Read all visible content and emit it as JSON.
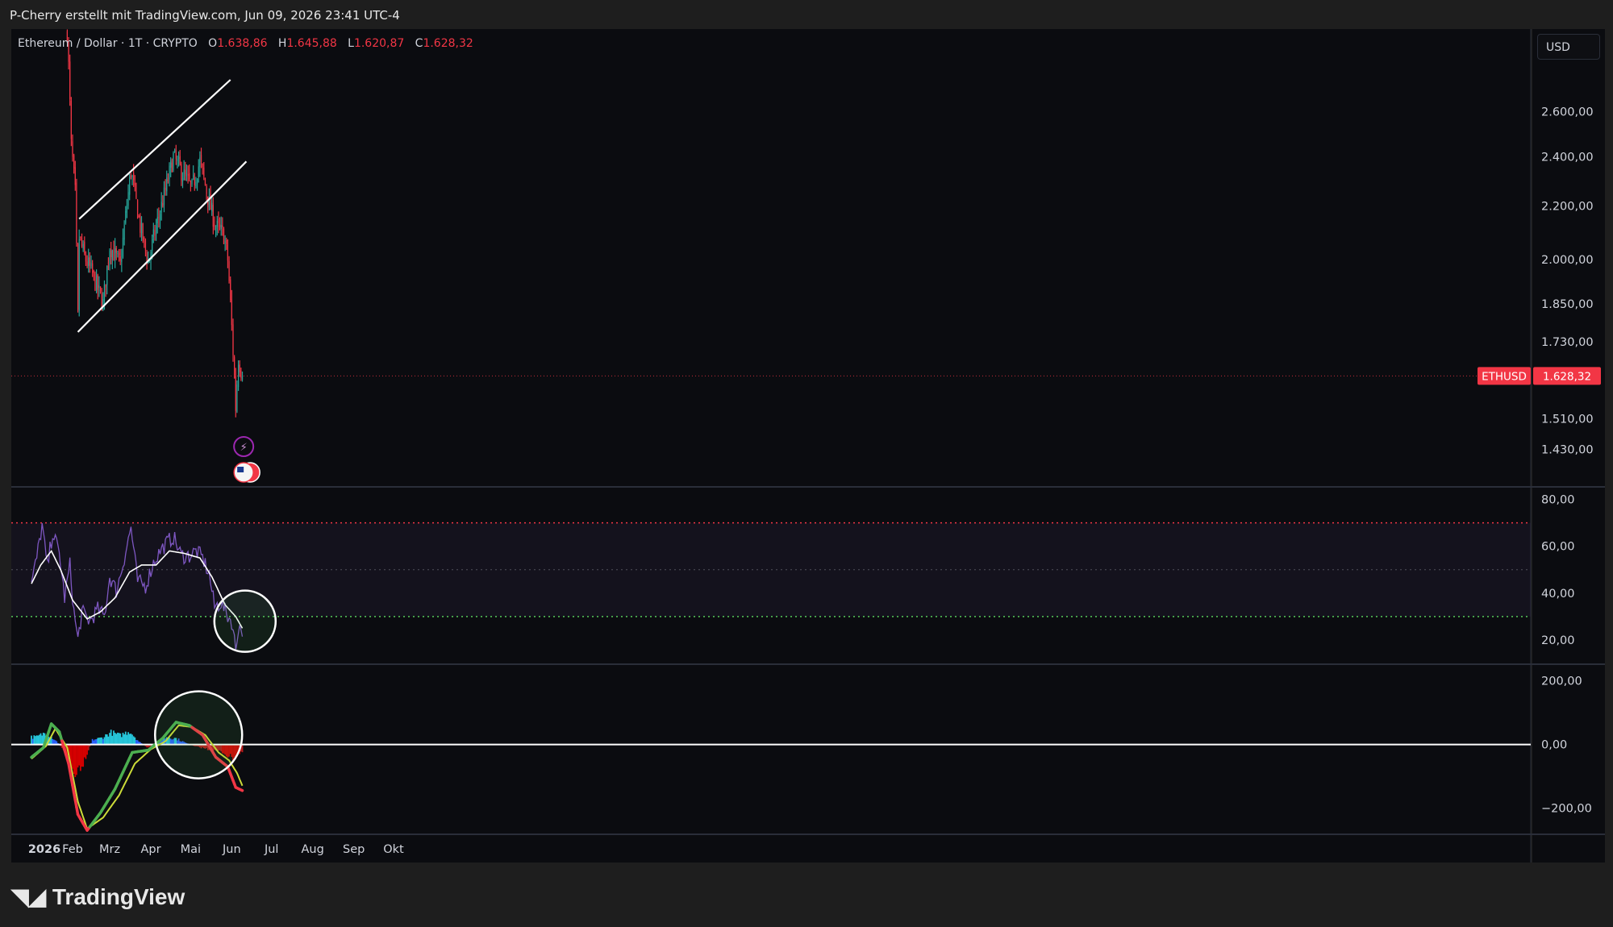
{
  "header": {
    "attribution": "P-Cherry erstellt mit TradingView.com, Jun 09, 2026 23:41 UTC-4"
  },
  "legend": {
    "symbol": "Ethereum / Dollar · 1T · CRYPTO",
    "open_label": "O",
    "open": "1.638,86",
    "high_label": "H",
    "high": "1.645,88",
    "low_label": "L",
    "low": "1.620,87",
    "close_label": "C",
    "close": "1.628,32"
  },
  "currency": "USD",
  "price_badge": {
    "symbol": "ETHUSD",
    "value": "1.628,32"
  },
  "footer": {
    "brand": "TradingView"
  },
  "colors": {
    "background": "#0b0c10",
    "up": "#26a69a",
    "down": "#f23645",
    "rsi": "#7e57c2",
    "rsi_ma": "#ffffff",
    "rsi_overbought": "#f23645",
    "rsi_oversold": "#4caf50",
    "macd": "#f23645",
    "signal": "#cddc39"
  },
  "chart_data": [
    {
      "type": "candlestick",
      "title": "Ethereum / Dollar · 1T · CRYPTO",
      "x_ticks": [
        "2026",
        "Feb",
        "Mrz",
        "Apr",
        "Mai",
        "Jun",
        "Jul",
        "Aug",
        "Sep",
        "Okt"
      ],
      "y_ticks": [
        "2.600,00",
        "2.400,00",
        "2.200,00",
        "2.000,00",
        "1.850,00",
        "1.730,00",
        "1.510,00",
        "1.430,00"
      ],
      "y_scale": "log",
      "y_range": [
        1340,
        3000
      ],
      "last_price": 1628.32,
      "candle_anchors": [
        {
          "date": "2026-01-28",
          "close": 3000
        },
        {
          "date": "2026-01-31",
          "close": 2450
        },
        {
          "date": "2026-02-03",
          "close": 2250
        },
        {
          "date": "2026-02-05",
          "close": 1810
        },
        {
          "date": "2026-02-06",
          "close": 2080
        },
        {
          "date": "2026-02-10",
          "close": 2010
        },
        {
          "date": "2026-02-15",
          "close": 1960
        },
        {
          "date": "2026-02-24",
          "close": 1850
        },
        {
          "date": "2026-03-01",
          "close": 2050
        },
        {
          "date": "2026-03-09",
          "close": 1980
        },
        {
          "date": "2026-03-17",
          "close": 2340
        },
        {
          "date": "2026-03-24",
          "close": 2120
        },
        {
          "date": "2026-03-30",
          "close": 1990
        },
        {
          "date": "2026-04-05",
          "close": 2120
        },
        {
          "date": "2026-04-12",
          "close": 2260
        },
        {
          "date": "2026-04-18",
          "close": 2400
        },
        {
          "date": "2026-04-25",
          "close": 2330
        },
        {
          "date": "2026-05-02",
          "close": 2270
        },
        {
          "date": "2026-05-08",
          "close": 2380
        },
        {
          "date": "2026-05-15",
          "close": 2210
        },
        {
          "date": "2026-05-20",
          "close": 2120
        },
        {
          "date": "2026-05-26",
          "close": 2090
        },
        {
          "date": "2026-05-29",
          "close": 2000
        },
        {
          "date": "2026-06-02",
          "close": 1700
        },
        {
          "date": "2026-06-04",
          "close": 1540
        },
        {
          "date": "2026-06-06",
          "close": 1680
        },
        {
          "date": "2026-06-09",
          "close": 1628.32
        }
      ],
      "trendlines": [
        {
          "name": "channel-upper",
          "from": {
            "date": "2026-02-06",
            "price": 2150
          },
          "to": {
            "date": "2026-05-31",
            "price": 2750
          }
        },
        {
          "name": "channel-lower",
          "from": {
            "date": "2026-02-05",
            "price": 1760
          },
          "to": {
            "date": "2026-06-12",
            "price": 2380
          }
        }
      ]
    },
    {
      "type": "line",
      "name": "RSI",
      "y_ticks": [
        "80,00",
        "60,00",
        "40,00",
        "20,00"
      ],
      "y_range": [
        10,
        85
      ],
      "levels": {
        "overbought": 70,
        "middle": 50,
        "oversold": 30
      },
      "series": [
        {
          "key": "rsi",
          "points": [
            {
              "date": "2026-01-01",
              "value": 44
            },
            {
              "date": "2026-01-05",
              "value": 55
            },
            {
              "date": "2026-01-09",
              "value": 69
            },
            {
              "date": "2026-01-13",
              "value": 51
            },
            {
              "date": "2026-01-17",
              "value": 66
            },
            {
              "date": "2026-01-22",
              "value": 57
            },
            {
              "date": "2026-01-26",
              "value": 38
            },
            {
              "date": "2026-01-30",
              "value": 52
            },
            {
              "date": "2026-02-02",
              "value": 32
            },
            {
              "date": "2026-02-05",
              "value": 20
            },
            {
              "date": "2026-02-08",
              "value": 32
            },
            {
              "date": "2026-02-14",
              "value": 28
            },
            {
              "date": "2026-02-20",
              "value": 33
            },
            {
              "date": "2026-02-25",
              "value": 30
            },
            {
              "date": "2026-03-01",
              "value": 47
            },
            {
              "date": "2026-03-06",
              "value": 41
            },
            {
              "date": "2026-03-10",
              "value": 50
            },
            {
              "date": "2026-03-17",
              "value": 68
            },
            {
              "date": "2026-03-22",
              "value": 45
            },
            {
              "date": "2026-03-28",
              "value": 43
            },
            {
              "date": "2026-04-03",
              "value": 53
            },
            {
              "date": "2026-04-08",
              "value": 58
            },
            {
              "date": "2026-04-14",
              "value": 62
            },
            {
              "date": "2026-04-18",
              "value": 64
            },
            {
              "date": "2026-04-24",
              "value": 56
            },
            {
              "date": "2026-04-30",
              "value": 56
            },
            {
              "date": "2026-05-05",
              "value": 58
            },
            {
              "date": "2026-05-10",
              "value": 55
            },
            {
              "date": "2026-05-15",
              "value": 48
            },
            {
              "date": "2026-05-19",
              "value": 34
            },
            {
              "date": "2026-05-24",
              "value": 36
            },
            {
              "date": "2026-05-28",
              "value": 31
            },
            {
              "date": "2026-06-01",
              "value": 28
            },
            {
              "date": "2026-06-04",
              "value": 16
            },
            {
              "date": "2026-06-06",
              "value": 26
            },
            {
              "date": "2026-06-09",
              "value": 24
            }
          ]
        },
        {
          "key": "rsi_ma",
          "points": [
            {
              "date": "2026-01-01",
              "value": 44
            },
            {
              "date": "2026-01-08",
              "value": 52
            },
            {
              "date": "2026-01-16",
              "value": 58
            },
            {
              "date": "2026-01-23",
              "value": 50
            },
            {
              "date": "2026-02-01",
              "value": 37
            },
            {
              "date": "2026-02-12",
              "value": 29
            },
            {
              "date": "2026-02-22",
              "value": 32
            },
            {
              "date": "2026-03-05",
              "value": 38
            },
            {
              "date": "2026-03-16",
              "value": 49
            },
            {
              "date": "2026-03-25",
              "value": 52
            },
            {
              "date": "2026-04-05",
              "value": 52
            },
            {
              "date": "2026-04-15",
              "value": 58
            },
            {
              "date": "2026-04-26",
              "value": 57
            },
            {
              "date": "2026-05-08",
              "value": 55
            },
            {
              "date": "2026-05-17",
              "value": 47
            },
            {
              "date": "2026-05-27",
              "value": 35
            },
            {
              "date": "2026-06-04",
              "value": 30
            },
            {
              "date": "2026-06-09",
              "value": 25
            }
          ]
        }
      ]
    },
    {
      "type": "line",
      "name": "MACD",
      "y_ticks": [
        "200,00",
        "0,00",
        "−200,00"
      ],
      "y_range": [
        -280,
        250
      ],
      "series": [
        {
          "key": "macd",
          "points": [
            {
              "date": "2026-01-01",
              "value": -40
            },
            {
              "date": "2026-01-10",
              "value": -10
            },
            {
              "date": "2026-01-16",
              "value": 65
            },
            {
              "date": "2026-01-22",
              "value": 40
            },
            {
              "date": "2026-01-29",
              "value": -60
            },
            {
              "date": "2026-02-05",
              "value": -220
            },
            {
              "date": "2026-02-12",
              "value": -270
            },
            {
              "date": "2026-02-22",
              "value": -215
            },
            {
              "date": "2026-03-05",
              "value": -140
            },
            {
              "date": "2026-03-18",
              "value": -25
            },
            {
              "date": "2026-03-30",
              "value": -18
            },
            {
              "date": "2026-04-10",
              "value": 20
            },
            {
              "date": "2026-04-20",
              "value": 70
            },
            {
              "date": "2026-04-30",
              "value": 60
            },
            {
              "date": "2026-05-10",
              "value": 30
            },
            {
              "date": "2026-05-20",
              "value": -40
            },
            {
              "date": "2026-05-29",
              "value": -70
            },
            {
              "date": "2026-06-04",
              "value": -135
            },
            {
              "date": "2026-06-09",
              "value": -145
            }
          ]
        },
        {
          "key": "signal",
          "points": [
            {
              "date": "2026-01-01",
              "value": -45
            },
            {
              "date": "2026-01-12",
              "value": -5
            },
            {
              "date": "2026-01-19",
              "value": 50
            },
            {
              "date": "2026-01-28",
              "value": -10
            },
            {
              "date": "2026-02-05",
              "value": -180
            },
            {
              "date": "2026-02-12",
              "value": -265
            },
            {
              "date": "2026-02-24",
              "value": -230
            },
            {
              "date": "2026-03-08",
              "value": -160
            },
            {
              "date": "2026-03-20",
              "value": -60
            },
            {
              "date": "2026-04-01",
              "value": -15
            },
            {
              "date": "2026-04-12",
              "value": 10
            },
            {
              "date": "2026-04-22",
              "value": 60
            },
            {
              "date": "2026-05-02",
              "value": 55
            },
            {
              "date": "2026-05-12",
              "value": 30
            },
            {
              "date": "2026-05-22",
              "value": -25
            },
            {
              "date": "2026-05-30",
              "value": -50
            },
            {
              "date": "2026-06-05",
              "value": -90
            },
            {
              "date": "2026-06-09",
              "value": -130
            }
          ]
        }
      ],
      "histogram": [
        {
          "date": "2026-01-05",
          "value": 25
        },
        {
          "date": "2026-01-12",
          "value": 40
        },
        {
          "date": "2026-01-19",
          "value": 15
        },
        {
          "date": "2026-01-26",
          "value": -20
        },
        {
          "date": "2026-02-02",
          "value": -95
        },
        {
          "date": "2026-02-09",
          "value": -60
        },
        {
          "date": "2026-02-16",
          "value": 15
        },
        {
          "date": "2026-02-23",
          "value": 22
        },
        {
          "date": "2026-03-02",
          "value": 40
        },
        {
          "date": "2026-03-09",
          "value": 30
        },
        {
          "date": "2026-03-16",
          "value": 45
        },
        {
          "date": "2026-03-23",
          "value": 10
        },
        {
          "date": "2026-03-30",
          "value": -12
        },
        {
          "date": "2026-04-06",
          "value": 8
        },
        {
          "date": "2026-04-13",
          "value": 25
        },
        {
          "date": "2026-04-20",
          "value": 20
        },
        {
          "date": "2026-04-27",
          "value": 6
        },
        {
          "date": "2026-05-04",
          "value": -6
        },
        {
          "date": "2026-05-11",
          "value": -12
        },
        {
          "date": "2026-05-18",
          "value": -20
        },
        {
          "date": "2026-05-25",
          "value": -25
        },
        {
          "date": "2026-06-01",
          "value": -45
        },
        {
          "date": "2026-06-08",
          "value": -25
        }
      ]
    }
  ]
}
